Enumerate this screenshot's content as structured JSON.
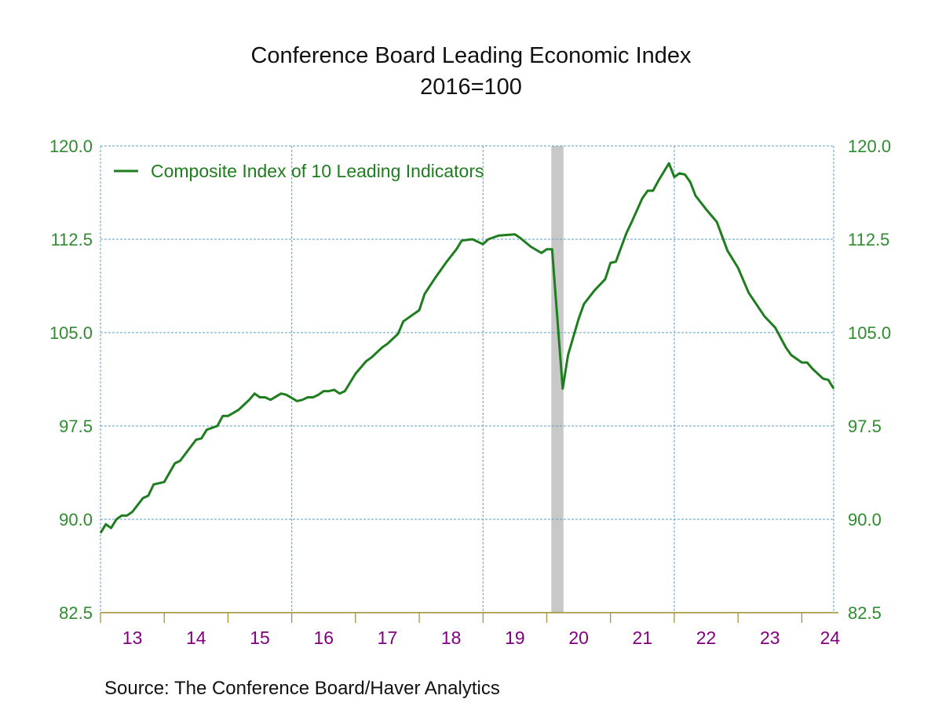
{
  "chart_data": {
    "type": "line",
    "title": "Conference Board Leading Economic Index",
    "subtitle": "2016=100",
    "xlabel": "",
    "ylabel": "",
    "ylim": [
      82.5,
      120.0
    ],
    "yticks": [
      "82.5",
      "90.0",
      "97.5",
      "105.0",
      "112.5",
      "120.0"
    ],
    "xlim": [
      "2013-01",
      "2024-07"
    ],
    "xtick_labels": [
      "13",
      "14",
      "15",
      "16",
      "17",
      "18",
      "19",
      "20",
      "21",
      "22",
      "23",
      "24"
    ],
    "grid": true,
    "legend_position": "top-left",
    "recession_shading": {
      "start": "2020-02",
      "end": "2020-04",
      "color": "#c8c8c8"
    },
    "colors": {
      "line": "#1e7d1e",
      "ytick": "#2e8b2e",
      "xtick": "#800080",
      "grid": "#5b9fce",
      "axis": "#9c8c2c"
    },
    "series": [
      {
        "name": "Composite Index of 10 Leading Indicators",
        "x": [
          "2013-01",
          "2013-02",
          "2013-03",
          "2013-04",
          "2013-05",
          "2013-06",
          "2013-07",
          "2013-09",
          "2013-10",
          "2013-11",
          "2014-01",
          "2014-03",
          "2014-04",
          "2014-07",
          "2014-08",
          "2014-09",
          "2014-11",
          "2014-12",
          "2015-01",
          "2015-03",
          "2015-05",
          "2015-06",
          "2015-07",
          "2015-08",
          "2015-09",
          "2015-11",
          "2015-12",
          "2016-02",
          "2016-03",
          "2016-04",
          "2016-05",
          "2016-06",
          "2016-07",
          "2016-08",
          "2016-09",
          "2016-10",
          "2016-11",
          "2017-01",
          "2017-03",
          "2017-04",
          "2017-06",
          "2017-07",
          "2017-09",
          "2017-10",
          "2018-01",
          "2018-02",
          "2018-04",
          "2018-06",
          "2018-08",
          "2018-09",
          "2018-11",
          "2019-01",
          "2019-02",
          "2019-04",
          "2019-07",
          "2019-08",
          "2019-10",
          "2019-12",
          "2020-01",
          "2020-02",
          "2020-04",
          "2020-05",
          "2020-07",
          "2020-08",
          "2020-10",
          "2020-12",
          "2021-01",
          "2021-02",
          "2021-04",
          "2021-05",
          "2021-07",
          "2021-08",
          "2021-09",
          "2021-10",
          "2021-12",
          "2022-01",
          "2022-02",
          "2022-03",
          "2022-04",
          "2022-05",
          "2022-07",
          "2022-08",
          "2022-09",
          "2022-11",
          "2023-01",
          "2023-03",
          "2023-06",
          "2023-08",
          "2023-10",
          "2023-11",
          "2024-01",
          "2024-02",
          "2024-03",
          "2024-05",
          "2024-06",
          "2024-07"
        ],
        "values": [
          88.9,
          89.6,
          89.3,
          90.0,
          90.3,
          90.3,
          90.6,
          91.7,
          91.9,
          92.8,
          93.0,
          94.5,
          94.7,
          96.4,
          96.5,
          97.2,
          97.5,
          98.3,
          98.3,
          98.8,
          99.6,
          100.1,
          99.8,
          99.8,
          99.6,
          100.1,
          100.0,
          99.5,
          99.6,
          99.8,
          99.8,
          100.0,
          100.3,
          100.3,
          100.4,
          100.1,
          100.3,
          101.7,
          102.7,
          103.0,
          103.8,
          104.1,
          104.9,
          105.9,
          106.8,
          108.1,
          109.4,
          110.6,
          111.7,
          112.4,
          112.5,
          112.1,
          112.5,
          112.8,
          112.9,
          112.6,
          111.9,
          111.4,
          111.7,
          111.7,
          100.5,
          103.2,
          106.1,
          107.3,
          108.4,
          109.3,
          110.6,
          110.7,
          113.0,
          113.9,
          115.8,
          116.4,
          116.4,
          117.2,
          118.6,
          117.5,
          117.8,
          117.7,
          117.1,
          116.0,
          114.9,
          114.4,
          113.9,
          111.6,
          110.2,
          108.2,
          106.3,
          105.4,
          103.8,
          103.2,
          102.6,
          102.6,
          102.1,
          101.3,
          101.2,
          100.5
        ]
      }
    ]
  },
  "source": "Source:  The Conference Board/Haver Analytics"
}
